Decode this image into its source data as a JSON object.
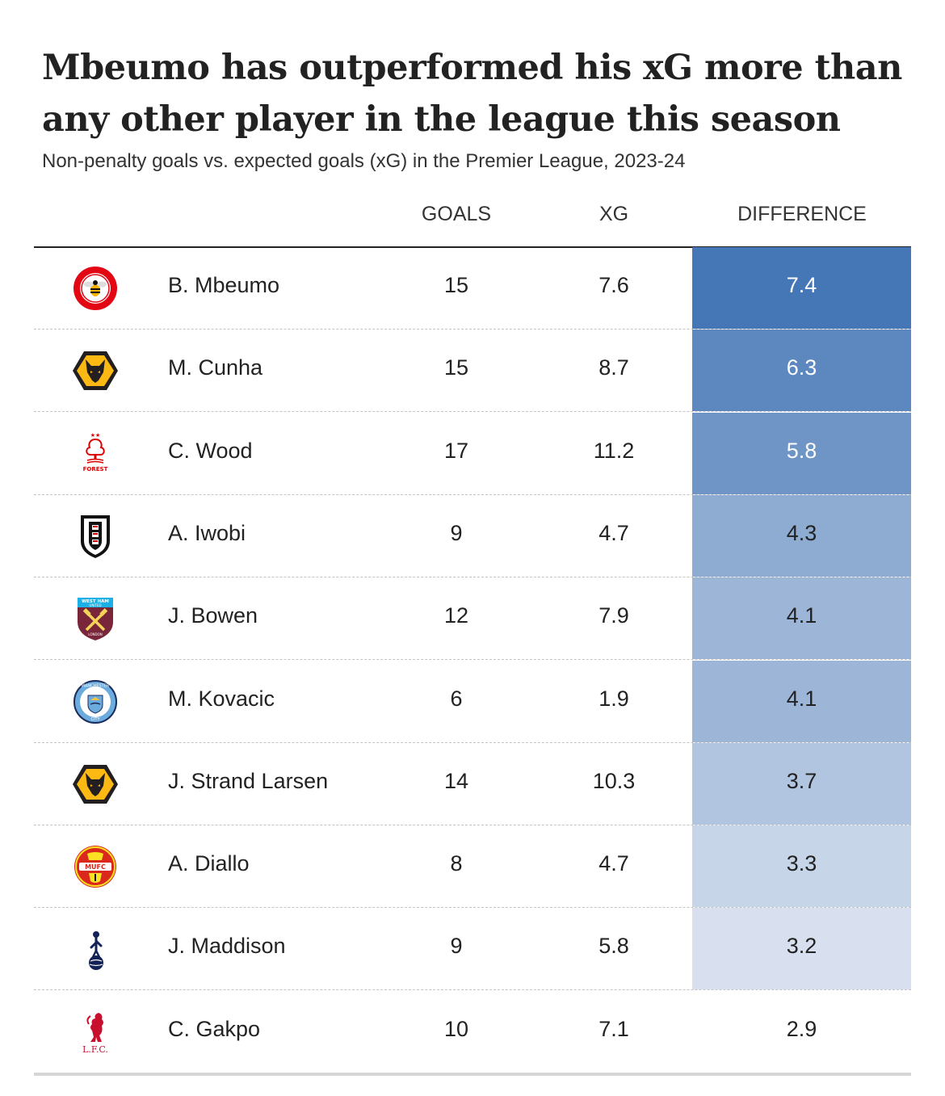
{
  "title": "Mbeumo has outperformed his xG more than any other player in the league this season",
  "subtitle": "Non-penalty goals vs. expected goals (xG) in the Premier League, 2023-24",
  "columns": {
    "goals": "GOALS",
    "xg": "XG",
    "difference": "DIFFERENCE"
  },
  "colors": {
    "diff_high": "#4577b6",
    "diff_low": "#e8ecf5",
    "separator": "#c4c4c4"
  },
  "chart_data": {
    "type": "table",
    "title": "Mbeumo has outperformed his xG more than any other player in the league this season",
    "subtitle": "Non-penalty goals vs. expected goals (xG) in the Premier League, 2023-24",
    "columns": [
      "GOALS",
      "XG",
      "DIFFERENCE"
    ],
    "rows": [
      {
        "player": "B. Mbeumo",
        "club_icon": "brentford-crest-icon",
        "goals": "15",
        "xg": "7.6",
        "difference": "7.4",
        "shade": 1.0
      },
      {
        "player": "M. Cunha",
        "club_icon": "wolves-crest-icon",
        "goals": "15",
        "xg": "8.7",
        "difference": "6.3",
        "shade": 0.86
      },
      {
        "player": "C. Wood",
        "club_icon": "nottingham-forest-crest-icon",
        "goals": "17",
        "xg": "11.2",
        "difference": "5.8",
        "shade": 0.74
      },
      {
        "player": "A. Iwobi",
        "club_icon": "fulham-crest-icon",
        "goals": "9",
        "xg": "4.7",
        "difference": "4.3",
        "shade": 0.55
      },
      {
        "player": "J. Bowen",
        "club_icon": "west-ham-crest-icon",
        "goals": "12",
        "xg": "7.9",
        "difference": "4.1",
        "shade": 0.46
      },
      {
        "player": "M. Kovacic",
        "club_icon": "manchester-city-crest-icon",
        "goals": "6",
        "xg": "1.9",
        "difference": "4.1",
        "shade": 0.46
      },
      {
        "player": "J. Strand Larsen",
        "club_icon": "wolves-crest-icon",
        "goals": "14",
        "xg": "10.3",
        "difference": "3.7",
        "shade": 0.33
      },
      {
        "player": "A. Diallo",
        "club_icon": "manchester-united-crest-icon",
        "goals": "8",
        "xg": "4.7",
        "difference": "3.3",
        "shade": 0.2
      },
      {
        "player": "J. Maddison",
        "club_icon": "tottenham-crest-icon",
        "goals": "9",
        "xg": "5.8",
        "difference": "3.2",
        "shade": 0.1
      },
      {
        "player": "C. Gakpo",
        "club_icon": "liverpool-crest-icon",
        "goals": "10",
        "xg": "7.1",
        "difference": "2.9",
        "shade": 0.0
      }
    ]
  }
}
